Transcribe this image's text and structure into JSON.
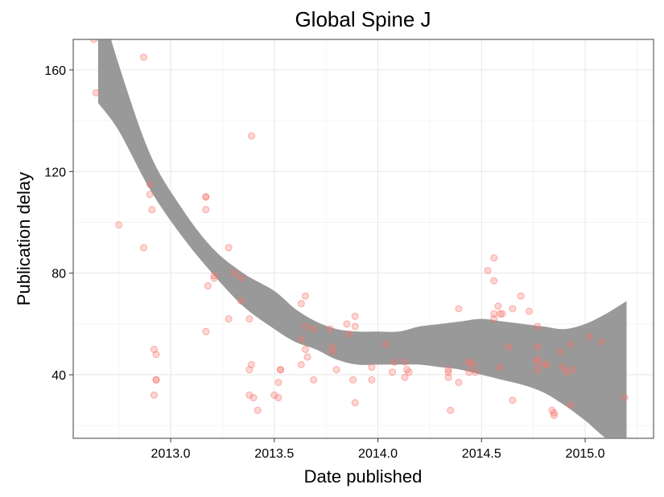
{
  "chart_data": {
    "type": "scatter",
    "title": "Global Spine J",
    "xlabel": "Date published",
    "ylabel": "Publication delay",
    "xlim": [
      2012.53,
      2015.33
    ],
    "ylim": [
      15,
      172
    ],
    "xticks": [
      2013.0,
      2013.5,
      2014.0,
      2014.5,
      2015.0
    ],
    "xtick_labels": [
      "2013.0",
      "2013.5",
      "2014.0",
      "2014.5",
      "2015.0"
    ],
    "yticks": [
      40,
      80,
      120,
      160
    ],
    "ytick_labels": [
      "40",
      "80",
      "120",
      "160"
    ],
    "grid": true,
    "legend": "none",
    "point_color": "#f8766d",
    "band_color": "#999999",
    "points": [
      [
        2012.63,
        172
      ],
      [
        2012.64,
        151
      ],
      [
        2012.75,
        99
      ],
      [
        2012.87,
        165
      ],
      [
        2012.87,
        90
      ],
      [
        2012.9,
        115
      ],
      [
        2012.9,
        111
      ],
      [
        2012.91,
        105
      ],
      [
        2012.92,
        50
      ],
      [
        2012.93,
        48
      ],
      [
        2012.93,
        38
      ],
      [
        2012.93,
        38
      ],
      [
        2012.92,
        32
      ],
      [
        2013.17,
        110
      ],
      [
        2013.17,
        110
      ],
      [
        2013.17,
        105
      ],
      [
        2013.18,
        75
      ],
      [
        2013.17,
        57
      ],
      [
        2013.21,
        79
      ],
      [
        2013.21,
        78
      ],
      [
        2013.28,
        90
      ],
      [
        2013.28,
        62
      ],
      [
        2013.31,
        80
      ],
      [
        2013.34,
        78
      ],
      [
        2013.34,
        69
      ],
      [
        2013.38,
        62
      ],
      [
        2013.39,
        134
      ],
      [
        2013.39,
        44
      ],
      [
        2013.38,
        42
      ],
      [
        2013.38,
        32
      ],
      [
        2013.4,
        31
      ],
      [
        2013.42,
        26
      ],
      [
        2013.5,
        32
      ],
      [
        2013.52,
        31
      ],
      [
        2013.53,
        42
      ],
      [
        2013.52,
        37
      ],
      [
        2013.53,
        42
      ],
      [
        2013.63,
        68
      ],
      [
        2013.63,
        54
      ],
      [
        2013.65,
        71
      ],
      [
        2013.65,
        59
      ],
      [
        2013.65,
        50
      ],
      [
        2013.66,
        47
      ],
      [
        2013.63,
        44
      ],
      [
        2013.69,
        58
      ],
      [
        2013.69,
        38
      ],
      [
        2013.77,
        58
      ],
      [
        2013.78,
        51
      ],
      [
        2013.78,
        49
      ],
      [
        2013.8,
        42
      ],
      [
        2013.85,
        60
      ],
      [
        2013.86,
        56
      ],
      [
        2013.89,
        63
      ],
      [
        2013.89,
        59
      ],
      [
        2013.88,
        38
      ],
      [
        2013.89,
        29
      ],
      [
        2013.97,
        43
      ],
      [
        2013.97,
        38
      ],
      [
        2014.04,
        52
      ],
      [
        2014.08,
        45
      ],
      [
        2014.07,
        41
      ],
      [
        2014.13,
        45
      ],
      [
        2014.14,
        42
      ],
      [
        2014.15,
        41
      ],
      [
        2014.13,
        39
      ],
      [
        2014.34,
        42
      ],
      [
        2014.34,
        41
      ],
      [
        2014.34,
        39
      ],
      [
        2014.35,
        26
      ],
      [
        2014.39,
        66
      ],
      [
        2014.39,
        37
      ],
      [
        2014.44,
        45
      ],
      [
        2014.44,
        45
      ],
      [
        2014.44,
        41
      ],
      [
        2014.46,
        44
      ],
      [
        2014.47,
        41
      ],
      [
        2014.53,
        81
      ],
      [
        2014.56,
        86
      ],
      [
        2014.56,
        77
      ],
      [
        2014.56,
        64
      ],
      [
        2014.56,
        62
      ],
      [
        2014.58,
        67
      ],
      [
        2014.59,
        64
      ],
      [
        2014.6,
        64
      ],
      [
        2014.59,
        43
      ],
      [
        2014.63,
        51
      ],
      [
        2014.65,
        66
      ],
      [
        2014.65,
        30
      ],
      [
        2014.69,
        71
      ],
      [
        2014.73,
        65
      ],
      [
        2014.77,
        59
      ],
      [
        2014.77,
        51
      ],
      [
        2014.77,
        46
      ],
      [
        2014.77,
        45
      ],
      [
        2014.77,
        42
      ],
      [
        2014.81,
        44
      ],
      [
        2014.81,
        44
      ],
      [
        2014.84,
        26
      ],
      [
        2014.85,
        25
      ],
      [
        2014.85,
        24
      ],
      [
        2014.88,
        49
      ],
      [
        2014.89,
        43
      ],
      [
        2014.91,
        41
      ],
      [
        2014.93,
        52
      ],
      [
        2014.94,
        42
      ],
      [
        2014.93,
        28
      ],
      [
        2015.02,
        55
      ],
      [
        2015.08,
        53
      ],
      [
        2015.19,
        31
      ]
    ],
    "band_upper": [
      [
        2012.65,
        190
      ],
      [
        2012.75,
        162
      ],
      [
        2012.9,
        127
      ],
      [
        2013.05,
        106
      ],
      [
        2013.2,
        90
      ],
      [
        2013.35,
        80
      ],
      [
        2013.5,
        73
      ],
      [
        2013.6,
        66
      ],
      [
        2013.7,
        61
      ],
      [
        2013.8,
        58
      ],
      [
        2013.9,
        57
      ],
      [
        2014.0,
        57
      ],
      [
        2014.1,
        57
      ],
      [
        2014.2,
        59
      ],
      [
        2014.3,
        60
      ],
      [
        2014.4,
        61
      ],
      [
        2014.5,
        62
      ],
      [
        2014.6,
        61
      ],
      [
        2014.7,
        60
      ],
      [
        2014.8,
        59
      ],
      [
        2014.9,
        58
      ],
      [
        2015.0,
        60
      ],
      [
        2015.1,
        64
      ],
      [
        2015.2,
        69
      ]
    ],
    "band_lower": [
      [
        2012.65,
        147
      ],
      [
        2012.75,
        136
      ],
      [
        2012.9,
        113
      ],
      [
        2013.05,
        95
      ],
      [
        2013.2,
        80
      ],
      [
        2013.35,
        67
      ],
      [
        2013.5,
        58
      ],
      [
        2013.6,
        53
      ],
      [
        2013.7,
        50
      ],
      [
        2013.8,
        46
      ],
      [
        2013.9,
        44
      ],
      [
        2014.0,
        44
      ],
      [
        2014.1,
        44
      ],
      [
        2014.2,
        44
      ],
      [
        2014.3,
        43
      ],
      [
        2014.4,
        42
      ],
      [
        2014.5,
        40
      ],
      [
        2014.6,
        38
      ],
      [
        2014.7,
        36
      ],
      [
        2014.8,
        33
      ],
      [
        2014.9,
        28
      ],
      [
        2015.0,
        22
      ],
      [
        2015.1,
        15
      ],
      [
        2015.2,
        10
      ]
    ]
  }
}
